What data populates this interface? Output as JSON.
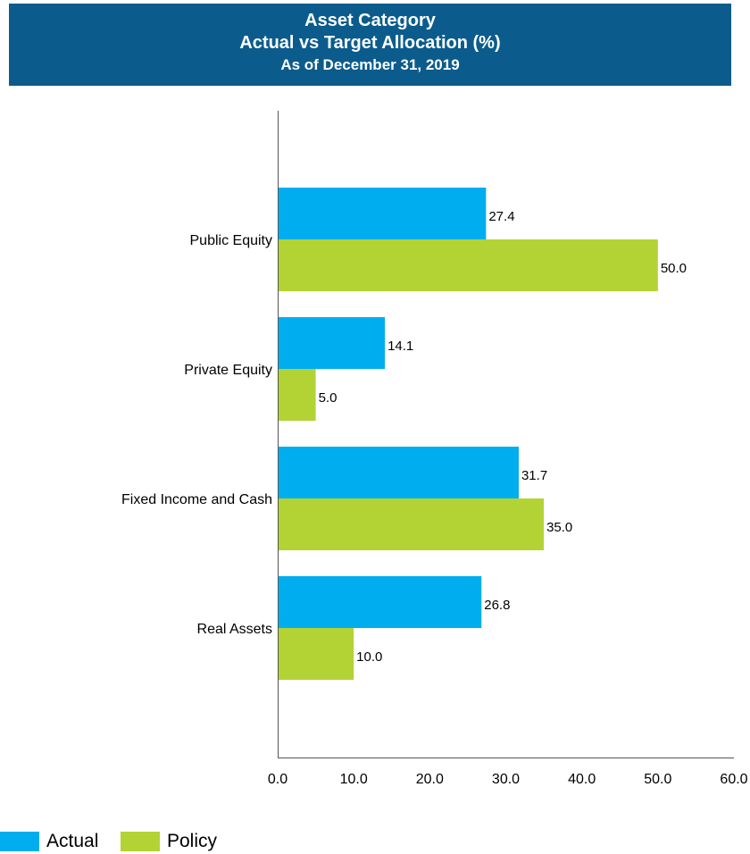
{
  "header": {
    "line1": "Asset Category",
    "line2": "Actual vs Target Allocation (%)",
    "line3": "As of December 31, 2019"
  },
  "colors": {
    "banner": "#0b5c8c",
    "actual": "#00aeef",
    "policy": "#b3d334"
  },
  "legend": {
    "actual": "Actual",
    "policy": "Policy"
  },
  "chart_data": {
    "type": "bar",
    "orientation": "horizontal",
    "title": "Asset Category\nActual vs Target Allocation (%)\nAs of December 31, 2019",
    "categories": [
      "Public Equity",
      "Private Equity",
      "Fixed Income and Cash",
      "Real Assets"
    ],
    "series": [
      {
        "name": "Actual",
        "values": [
          27.4,
          14.1,
          31.7,
          26.8
        ],
        "labels": [
          "27.4",
          "14.1",
          "31.7",
          "26.8"
        ]
      },
      {
        "name": "Policy",
        "values": [
          50.0,
          5.0,
          35.0,
          10.0
        ],
        "labels": [
          "50.0",
          "5.0",
          "35.0",
          "10.0"
        ]
      }
    ],
    "xlim": [
      0,
      60
    ],
    "xticks": [
      0,
      10,
      20,
      30,
      40,
      50,
      60
    ],
    "xtick_labels": [
      "0.0",
      "10.0",
      "20.0",
      "30.0",
      "40.0",
      "50.0",
      "60.0"
    ],
    "grid": false,
    "legend_position": "bottom-left"
  }
}
